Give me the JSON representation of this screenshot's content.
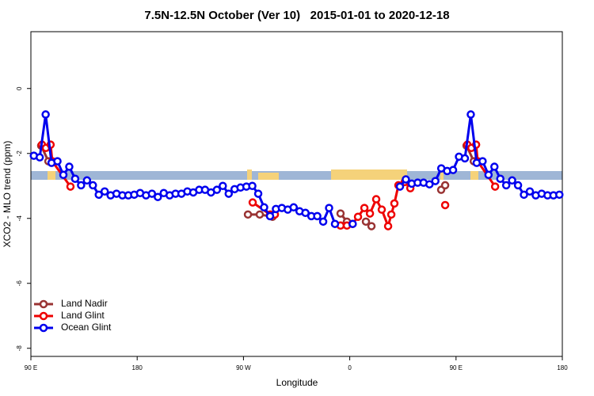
{
  "chart_data": {
    "type": "line",
    "title": "7.5N-12.5N October (Ver 10)   2015-01-01 to 2020-12-18",
    "x_label": "Longitude",
    "y_label": "XCO2 - MLO trend (ppm)",
    "xlim": [
      90,
      540
    ],
    "ylim": [
      -8.25,
      1.75
    ],
    "xticks": [
      {
        "value": 90,
        "label": "90 E"
      },
      180,
      {
        "value": 270,
        "label": "90 W"
      },
      {
        "value": 360,
        "label": "0"
      },
      {
        "value": 450,
        "label": "90 E"
      },
      {
        "value": 540,
        "label": "180"
      }
    ],
    "yticks": [
      -8,
      -6,
      -4,
      -2,
      0
    ],
    "legend": "bottom-left",
    "series": [
      {
        "name": "Land Nadir",
        "color": "#993333",
        "x": [
          98.7,
          104.8,
          null,
          273.8,
          283.8,
          294.6,
          null,
          352.2,
          357.6,
          null,
          373.7,
          378.4,
          null,
          437.4,
          440.8,
          null,
          458.9,
          465.0
        ],
        "values": [
          -1.76,
          -2.24,
          null,
          -3.88,
          -3.88,
          -3.95,
          null,
          -3.85,
          -4.1,
          null,
          -4.1,
          -4.24,
          null,
          -3.12,
          -2.98,
          null,
          -1.76,
          -2.24
        ]
      },
      {
        "name": "Land Glint",
        "color": "#ee0000",
        "x": [
          99.4,
          102.7,
          106.7,
          108.1,
          123.5,
          null,
          277.8,
          292.6,
          296.6,
          null,
          352.2,
          357.6,
          362.3,
          367.0,
          372.4,
          377.1,
          382.4,
          387.1,
          392.5,
          395.2,
          397.8,
          401.2,
          406.6,
          411.3,
          null,
          440.8,
          null,
          459.6,
          463.0,
          467.0,
          468.3,
          483.1
        ],
        "values": [
          -1.73,
          -1.83,
          -1.73,
          -2.24,
          -3.02,
          null,
          -3.51,
          -3.88,
          -3.88,
          null,
          -4.22,
          -4.22,
          -4.17,
          -3.95,
          -3.68,
          -3.85,
          -3.41,
          -3.73,
          -4.24,
          -3.88,
          -3.54,
          -2.98,
          -2.88,
          -3.07,
          null,
          -3.59,
          null,
          -1.73,
          -1.83,
          -1.73,
          -2.24,
          -3.02
        ]
      },
      {
        "name": "Ocean Glint",
        "color": "#0000ee",
        "x": [
          92.5,
          97.5,
          102.5,
          107.5,
          112.5,
          117.5,
          122.5,
          127.5,
          132.5,
          137.5,
          142.5,
          147.5,
          152.5,
          157.5,
          162.5,
          167.5,
          172.5,
          177.5,
          182.5,
          187.5,
          192.5,
          197.5,
          202.5,
          207.5,
          212.5,
          217.5,
          222.5,
          227.5,
          232.5,
          237.5,
          242.5,
          247.5,
          252.5,
          257.5,
          262.5,
          267.5,
          272.5,
          277.5,
          282.5,
          287.5,
          292.5,
          297.5,
          302.5,
          307.5,
          312.5,
          317.5,
          322.5,
          327.5,
          332.5,
          337.5,
          342.5,
          347.5,
          352.5,
          357.5,
          362.5,
          367.5,
          372.5,
          377.5,
          382.5,
          387.5,
          392.5,
          397.5,
          402.5,
          407.5,
          412.5,
          417.5,
          422.5,
          427.5,
          432.5,
          437.5,
          442.5,
          447.5,
          452.5,
          457.5,
          462.5,
          467.5,
          472.5,
          477.5,
          482.5,
          487.5,
          492.5,
          497.5,
          502.5,
          507.5,
          512.5,
          517.5,
          522.5,
          527.5,
          532.5,
          537.5
        ],
        "values": [
          -2.07,
          -2.12,
          -0.8,
          -2.29,
          -2.24,
          -2.66,
          -2.41,
          -2.78,
          -2.98,
          -2.83,
          -2.98,
          -3.27,
          -3.17,
          -3.29,
          -3.24,
          -3.29,
          -3.29,
          -3.27,
          -3.22,
          -3.29,
          -3.24,
          -3.34,
          -3.22,
          -3.29,
          -3.24,
          -3.24,
          -3.17,
          -3.2,
          -3.12,
          -3.12,
          -3.2,
          -3.12,
          -3.0,
          -3.24,
          -3.1,
          -3.05,
          -3.02,
          -3.0,
          -3.24,
          -3.66,
          -3.93,
          -3.71,
          -3.68,
          -3.73,
          -3.66,
          -3.78,
          -3.83,
          -3.93,
          -3.93,
          -4.1,
          -3.68,
          -4.17,
          null,
          null,
          -4.17,
          null,
          null,
          null,
          null,
          null,
          null,
          null,
          -3.02,
          -2.8,
          -2.93,
          -2.9,
          -2.9,
          -2.95,
          -2.85,
          -2.46,
          -2.54,
          -2.51,
          -2.1,
          -2.15,
          -0.8,
          -2.29,
          -2.24,
          -2.66,
          -2.41,
          -2.78,
          -2.98,
          -2.83,
          -2.98,
          -3.27,
          -3.17,
          -3.29,
          -3.24,
          -3.29,
          -3.29,
          -3.27
        ]
      }
    ]
  }
}
